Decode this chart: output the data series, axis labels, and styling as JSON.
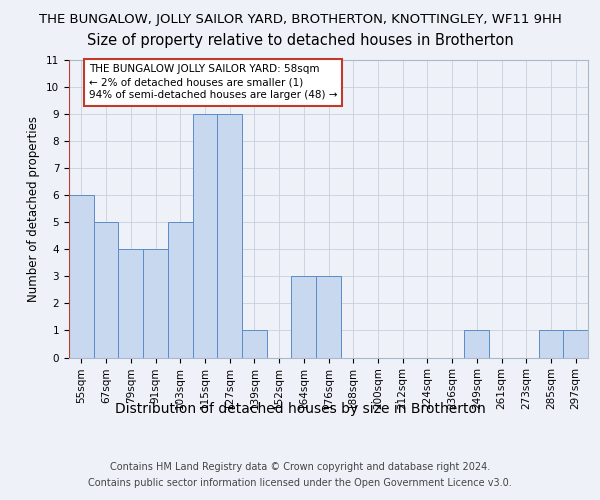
{
  "title": "THE BUNGALOW, JOLLY SAILOR YARD, BROTHERTON, KNOTTINGLEY, WF11 9HH",
  "subtitle": "Size of property relative to detached houses in Brotherton",
  "xlabel": "Distribution of detached houses by size in Brotherton",
  "ylabel": "Number of detached properties",
  "categories": [
    "55sqm",
    "67sqm",
    "79sqm",
    "91sqm",
    "103sqm",
    "115sqm",
    "127sqm",
    "139sqm",
    "152sqm",
    "164sqm",
    "176sqm",
    "188sqm",
    "200sqm",
    "212sqm",
    "224sqm",
    "236sqm",
    "249sqm",
    "261sqm",
    "273sqm",
    "285sqm",
    "297sqm"
  ],
  "values": [
    6,
    5,
    4,
    4,
    5,
    9,
    9,
    1,
    0,
    3,
    3,
    0,
    0,
    0,
    0,
    0,
    1,
    0,
    0,
    1,
    1
  ],
  "bar_color": "#c8d9ef",
  "bar_edge_color": "#5b8cc8",
  "annotation_text": "THE BUNGALOW JOLLY SAILOR YARD: 58sqm\n← 2% of detached houses are smaller (1)\n94% of semi-detached houses are larger (48) →",
  "annotation_box_color": "white",
  "annotation_box_edge_color": "#c0392b",
  "red_line_x": -0.5,
  "ylim": [
    0,
    11
  ],
  "yticks": [
    0,
    1,
    2,
    3,
    4,
    5,
    6,
    7,
    8,
    9,
    10,
    11
  ],
  "footer_line1": "Contains HM Land Registry data © Crown copyright and database right 2024.",
  "footer_line2": "Contains public sector information licensed under the Open Government Licence v3.0.",
  "bg_color": "#eef2f8",
  "plot_bg_color": "#eef2f8",
  "grid_color": "#c8d0de",
  "title_fontsize": 9.5,
  "subtitle_fontsize": 10.5,
  "xlabel_fontsize": 10,
  "ylabel_fontsize": 8.5,
  "tick_fontsize": 7.5,
  "footer_fontsize": 7,
  "annotation_fontsize": 7.5
}
